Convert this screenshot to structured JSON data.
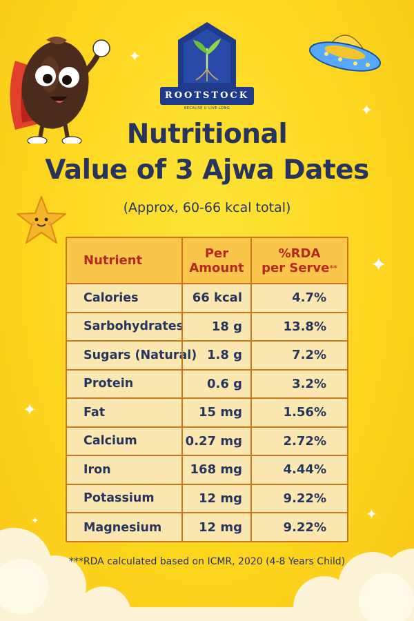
{
  "brand": {
    "name": "ROOTSTOCK",
    "tagline": "BECAUSE U LIVE LONG"
  },
  "title": {
    "line1": "Nutritional",
    "line2": "Value of 3 Ajwa Dates",
    "subtitle": "(Approx, 60-66 kcal total)"
  },
  "table": {
    "headers": {
      "nutrient": "Nutrient",
      "amount_line1": "Per",
      "amount_line2": "Amount",
      "rda_line1": "%RDA",
      "rda_line2": "per Serve",
      "rda_mark": "**"
    },
    "rows": [
      {
        "nutrient": "Calories",
        "amount": "66 kcal",
        "rda": "4.7%"
      },
      {
        "nutrient": "Sarbohydrates",
        "amount": "18 g",
        "rda": "13.8%"
      },
      {
        "nutrient": "Sugars (Natural)",
        "amount": "1.8 g",
        "rda": "7.2%"
      },
      {
        "nutrient": "Protein",
        "amount": "0.6 g",
        "rda": "3.2%"
      },
      {
        "nutrient": "Fat",
        "amount": "15 mg",
        "rda": "1.56%"
      },
      {
        "nutrient": "Calcium",
        "amount": "0.27 mg",
        "rda": "2.72%"
      },
      {
        "nutrient": "Iron",
        "amount": "168 mg",
        "rda": "4.44%"
      },
      {
        "nutrient": "Potassium",
        "amount": "12 mg",
        "rda": "9.22%"
      },
      {
        "nutrient": "Magnesium",
        "amount": "12 mg",
        "rda": "9.22%"
      }
    ]
  },
  "footnote": "***RDA calculated based on ICMR, 2020 (4-8 Years Child)",
  "colors": {
    "background": "#fdd51f",
    "title": "#27345e",
    "header_text": "#b5281c",
    "table_border": "#c8791b",
    "table_header_bg": "#f9c64b",
    "table_body_bg": "#fbe7b0",
    "brand_navy": "#1f3a8a"
  },
  "icons": [
    "date-mascot-icon",
    "ufo-icon",
    "star-mascot-icon",
    "sparkle-icon",
    "cloud-icon",
    "sprout-logo-icon"
  ]
}
